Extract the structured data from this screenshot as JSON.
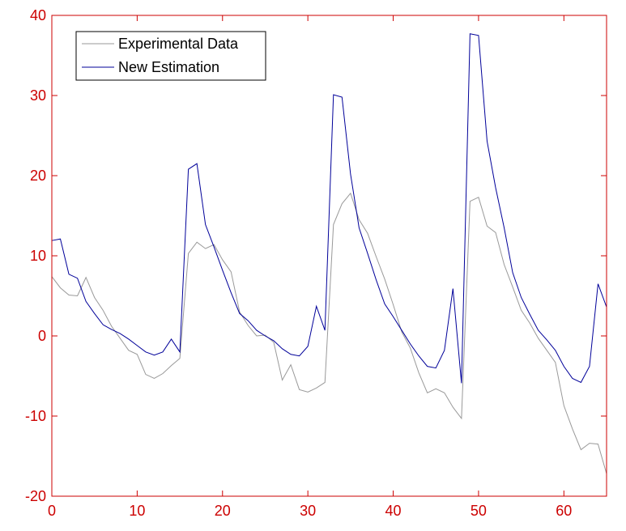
{
  "colors": {
    "axis": "#cc0000",
    "experimental": "#999999",
    "estimation": "#000099",
    "legend_border": "#000000",
    "background": "#ffffff"
  },
  "chart_data": {
    "type": "line",
    "title": "",
    "xlabel": "",
    "ylabel": "",
    "xlim": [
      0,
      65
    ],
    "ylim": [
      -20,
      40
    ],
    "xticks": [
      0,
      10,
      20,
      30,
      40,
      50,
      60
    ],
    "yticks": [
      -20,
      -10,
      0,
      10,
      20,
      30,
      40
    ],
    "grid": false,
    "legend_position": "top-left",
    "series": [
      {
        "name": "Experimental Data",
        "color": "#999999",
        "x": [
          0,
          1,
          2,
          3,
          4,
          5,
          6,
          7,
          8,
          9,
          10,
          11,
          12,
          13,
          14,
          15,
          16,
          17,
          18,
          19,
          20,
          21,
          22,
          23,
          24,
          25,
          26,
          27,
          28,
          29,
          30,
          31,
          32,
          33,
          34,
          35,
          36,
          37,
          38,
          39,
          40,
          41,
          42,
          43,
          44,
          45,
          46,
          47,
          48,
          49,
          50,
          51,
          52,
          53,
          54,
          55,
          56,
          57,
          58,
          59,
          60,
          61,
          62,
          63,
          64,
          65
        ],
        "y": [
          7.4,
          6,
          5.1,
          5,
          7.3,
          4.8,
          3.2,
          1.2,
          -0.3,
          -1.8,
          -2.3,
          -4.8,
          -5.3,
          -4.7,
          -3.7,
          -2.8,
          10.3,
          11.7,
          10.9,
          11.4,
          9.5,
          8,
          3,
          1.3,
          0,
          0.1,
          -0.8,
          -5.5,
          -3.6,
          -6.7,
          -7,
          -6.5,
          -5.8,
          13.9,
          16.5,
          17.8,
          14.5,
          12.8,
          9.9,
          7.1,
          3.9,
          0.5,
          -1.5,
          -4.6,
          -7.1,
          -6.6,
          -7.1,
          -8.9,
          -10.3,
          16.8,
          17.3,
          13.7,
          12.9,
          8.9,
          6.1,
          3.2,
          1.6,
          -0.3,
          -1.8,
          -3.3,
          -8.7,
          -11.6,
          -14.2,
          -13.4,
          -13.5,
          -17.2
        ]
      },
      {
        "name": "New Estimation",
        "color": "#000099",
        "x": [
          0,
          1,
          2,
          3,
          4,
          5,
          6,
          7,
          8,
          9,
          10,
          11,
          12,
          13,
          14,
          15,
          16,
          17,
          18,
          19,
          20,
          21,
          22,
          23,
          24,
          25,
          26,
          27,
          28,
          29,
          30,
          31,
          32,
          33,
          34,
          35,
          36,
          37,
          38,
          39,
          40,
          41,
          42,
          43,
          44,
          45,
          46,
          47,
          48,
          49,
          50,
          51,
          52,
          53,
          54,
          55,
          56,
          57,
          58,
          59,
          60,
          61,
          62,
          63,
          64,
          65
        ],
        "y": [
          11.9,
          12.1,
          7.7,
          7.2,
          4.3,
          2.8,
          1.4,
          0.8,
          0.3,
          -0.4,
          -1.2,
          -2,
          -2.4,
          -2,
          -0.4,
          -2,
          20.8,
          21.5,
          13.9,
          11.1,
          8.2,
          5.4,
          2.8,
          1.9,
          0.7,
          0,
          -0.6,
          -1.6,
          -2.3,
          -2.5,
          -1.3,
          3.7,
          0.7,
          30.1,
          29.8,
          20.2,
          13.5,
          10.3,
          7,
          4,
          2.4,
          0.7,
          -1,
          -2.5,
          -3.8,
          -4,
          -1.8,
          5.9,
          -5.9,
          37.7,
          37.5,
          24.3,
          18.5,
          13.5,
          7.9,
          4.8,
          2.7,
          0.7,
          -0.5,
          -1.8,
          -3.8,
          -5.3,
          -5.8,
          -3.8,
          6.5,
          3.6
        ]
      }
    ]
  }
}
